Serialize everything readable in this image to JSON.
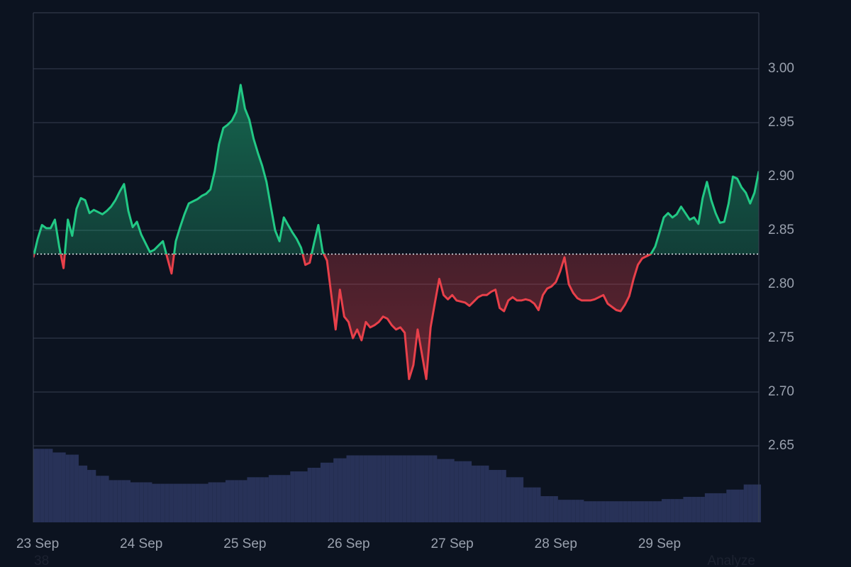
{
  "chart_data": {
    "type": "baseline",
    "categories": [
      null,
      "23 Sep",
      null,
      null,
      null,
      null,
      null,
      null,
      null,
      null,
      null,
      null,
      null,
      null,
      null,
      null,
      null,
      null,
      null,
      null,
      null,
      null,
      null,
      null,
      null,
      "24 Sep",
      null,
      null,
      null,
      null,
      null,
      null,
      null,
      null,
      null,
      null,
      null,
      null,
      null,
      null,
      null,
      null,
      null,
      null,
      null,
      null,
      null,
      null,
      null,
      "25 Sep",
      null,
      null,
      null,
      null,
      null,
      null,
      null,
      null,
      null,
      null,
      null,
      null,
      null,
      null,
      null,
      null,
      null,
      null,
      null,
      null,
      null,
      null,
      null,
      "26 Sep",
      null,
      null,
      null,
      null,
      null,
      null,
      null,
      null,
      null,
      null,
      null,
      null,
      null,
      null,
      null,
      null,
      null,
      null,
      null,
      null,
      null,
      null,
      null,
      "27 Sep",
      null,
      null,
      null,
      null,
      null,
      null,
      null,
      null,
      null,
      null,
      null,
      null,
      null,
      null,
      null,
      null,
      null,
      null,
      null,
      null,
      null,
      null,
      null,
      "28 Sep",
      null,
      null,
      null,
      null,
      null,
      null,
      null,
      null,
      null,
      null,
      null,
      null,
      null,
      null,
      null,
      null,
      null,
      null,
      null,
      null,
      null,
      null,
      null,
      "29 Sep",
      null,
      null,
      null,
      null,
      null,
      null,
      null,
      null,
      null,
      null,
      null,
      null,
      null,
      null,
      null,
      null,
      null,
      null,
      null,
      null,
      null,
      null,
      null
    ],
    "values": [
      2.825,
      2.842,
      2.855,
      2.852,
      2.852,
      2.86,
      2.835,
      2.815,
      2.86,
      2.845,
      2.87,
      2.88,
      2.878,
      2.866,
      2.869,
      2.867,
      2.865,
      2.868,
      2.872,
      2.878,
      2.886,
      2.893,
      2.868,
      2.853,
      2.858,
      2.846,
      2.838,
      2.83,
      2.832,
      2.836,
      2.84,
      2.825,
      2.81,
      2.84,
      2.853,
      2.865,
      2.875,
      2.877,
      2.879,
      2.882,
      2.884,
      2.888,
      2.905,
      2.93,
      2.945,
      2.948,
      2.952,
      2.96,
      2.985,
      2.963,
      2.953,
      2.935,
      2.922,
      2.91,
      2.895,
      2.872,
      2.85,
      2.84,
      2.862,
      2.855,
      2.848,
      2.842,
      2.834,
      2.818,
      2.82,
      2.838,
      2.855,
      2.83,
      2.822,
      2.79,
      2.758,
      2.795,
      2.77,
      2.765,
      2.75,
      2.758,
      2.748,
      2.765,
      2.76,
      2.762,
      2.765,
      2.77,
      2.768,
      2.762,
      2.758,
      2.76,
      2.755,
      2.712,
      2.725,
      2.758,
      2.735,
      2.712,
      2.76,
      2.783,
      2.805,
      2.79,
      2.786,
      2.79,
      2.785,
      2.784,
      2.783,
      2.78,
      2.784,
      2.788,
      2.79,
      2.79,
      2.793,
      2.795,
      2.778,
      2.775,
      2.785,
      2.788,
      2.785,
      2.785,
      2.786,
      2.785,
      2.782,
      2.776,
      2.79,
      2.796,
      2.798,
      2.802,
      2.812,
      2.825,
      2.8,
      2.792,
      2.787,
      2.785,
      2.785,
      2.785,
      2.786,
      2.788,
      2.79,
      2.782,
      2.779,
      2.776,
      2.775,
      2.781,
      2.789,
      2.805,
      2.818,
      2.824,
      2.826,
      2.828,
      2.835,
      2.848,
      2.862,
      2.866,
      2.862,
      2.865,
      2.872,
      2.866,
      2.86,
      2.862,
      2.856,
      2.88,
      2.895,
      2.878,
      2.866,
      2.857,
      2.858,
      2.875,
      2.9,
      2.898,
      2.89,
      2.885,
      2.875,
      2.885,
      2.905
    ],
    "baseline": 2.828,
    "up_color": "#22c985",
    "down_color": "#e8404a",
    "ylim": [
      2.579,
      3.052
    ],
    "yticks": [
      {
        "value": 2.65,
        "label": "2.65"
      },
      {
        "value": 2.7,
        "label": "2.70"
      },
      {
        "value": 2.75,
        "label": "2.75"
      },
      {
        "value": 2.8,
        "label": "2.80"
      },
      {
        "value": 2.85,
        "label": "2.85"
      },
      {
        "value": 2.9,
        "label": "2.90"
      },
      {
        "value": 2.95,
        "label": "2.95"
      },
      {
        "value": 3.0,
        "label": "3.00"
      }
    ],
    "grid": true,
    "volume": [
      101,
      101,
      101,
      101,
      101,
      96,
      96,
      96,
      93,
      93,
      93,
      78,
      78,
      72,
      72,
      64,
      64,
      64,
      58,
      58,
      58,
      58,
      58,
      55,
      55,
      55,
      55,
      55,
      53,
      53,
      53,
      53,
      53,
      53,
      53,
      53,
      53,
      53,
      53,
      53,
      53,
      55,
      55,
      55,
      55,
      58,
      58,
      58,
      58,
      58,
      62,
      62,
      62,
      62,
      62,
      65,
      65,
      65,
      65,
      65,
      70,
      70,
      70,
      70,
      75,
      75,
      75,
      82,
      82,
      82,
      88,
      88,
      88,
      92,
      92,
      92,
      92,
      92,
      92,
      92,
      92,
      92,
      92,
      92,
      92,
      92,
      92,
      92,
      92,
      92,
      92,
      92,
      92,
      92,
      87,
      87,
      87,
      87,
      84,
      84,
      84,
      84,
      78,
      78,
      78,
      78,
      72,
      72,
      72,
      72,
      62,
      62,
      62,
      62,
      48,
      48,
      48,
      48,
      36,
      36,
      36,
      36,
      31,
      31,
      31,
      31,
      31,
      31,
      29,
      29,
      29,
      29,
      29,
      29,
      29,
      29,
      29,
      29,
      29,
      29,
      29,
      29,
      29,
      29,
      29,
      29,
      32,
      32,
      32,
      32,
      32,
      35,
      35,
      35,
      35,
      35,
      40,
      40,
      40,
      40,
      40,
      45,
      45,
      45,
      45,
      52,
      52,
      52,
      52
    ],
    "volume_color": "#283258",
    "y2lim": [
      0,
      700
    ]
  },
  "footer": {
    "left": "38",
    "right": "Analyze"
  }
}
